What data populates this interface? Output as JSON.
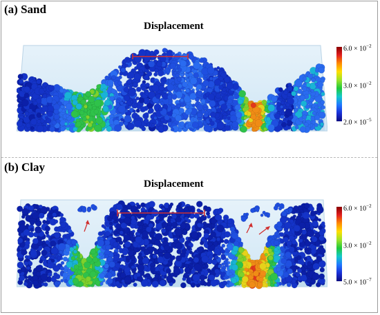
{
  "panels": [
    {
      "label": "(a) Sand",
      "title": "Displacement",
      "colorbar": {
        "max_label": "6.0 × 10",
        "max_exp": "−2",
        "mid_label": "3.0 × 10",
        "mid_exp": "−2",
        "min_label": "2.0 × 10",
        "min_exp": "−5"
      }
    },
    {
      "label": "(b) Clay",
      "title": "Displacement",
      "colorbar": {
        "max_label": "6.0 × 10",
        "max_exp": "−2",
        "mid_label": "3.0 × 10",
        "mid_exp": "−2",
        "min_label": "5.0 × 10",
        "min_exp": "−7"
      }
    }
  ],
  "colors": {
    "particle_low": "#1433c8",
    "particle_mid": "#2fc24a",
    "particle_high": "#e2381c",
    "box_fill": "#cfe6f5",
    "annotation_line": "#d03030"
  }
}
